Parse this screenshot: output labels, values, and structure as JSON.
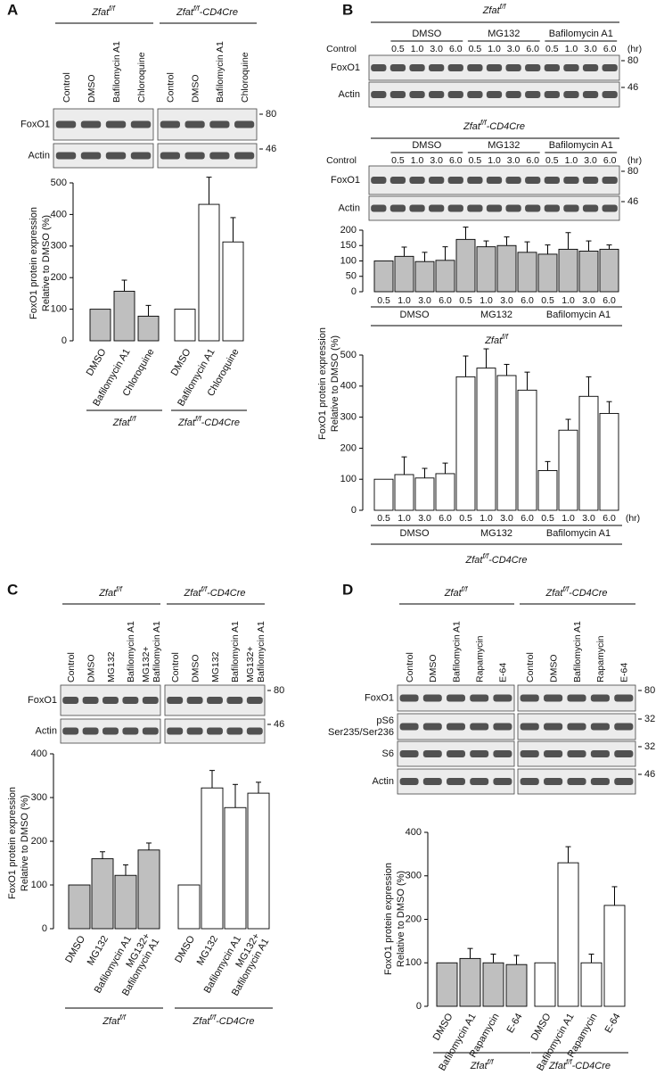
{
  "letters": [
    "A",
    "B",
    "C",
    "D"
  ],
  "blots": [
    {
      "boxes": [
        {
          "header": {
            "base": "Zfat",
            "sup": "f/f"
          },
          "lanes": [
            "Control",
            "DMSO",
            "Bafilomycin A1",
            "Chloroquine"
          ]
        },
        {
          "header": {
            "base": "Zfat",
            "sup": "f/f",
            "suffix": "-CD4Cre"
          },
          "lanes": [
            "Control",
            "DMSO",
            "Bafilomycin A1",
            "Chloroquine"
          ]
        }
      ],
      "rows": [
        {
          "label": "FoxO1",
          "marker": 80
        },
        {
          "label": "Actin",
          "marker": 46
        }
      ]
    },
    {
      "boxes": [
        {
          "header": {
            "base": "Zfat",
            "sup": "f/f"
          },
          "control": "Control",
          "groups": [
            {
              "name": "DMSO",
              "lanes": [
                "0.5",
                "1.0",
                "3.0",
                "6.0"
              ]
            },
            {
              "name": "MG132",
              "lanes": [
                "0.5",
                "1.0",
                "3.0",
                "6.0"
              ]
            },
            {
              "name": "Bafilomycin A1",
              "lanes": [
                "0.5",
                "1.0",
                "3.0",
                "6.0"
              ]
            }
          ],
          "unit": "(hr)"
        }
      ],
      "rows": [
        {
          "label": "FoxO1",
          "marker": 80
        },
        {
          "label": "Actin",
          "marker": 46
        }
      ]
    },
    {
      "boxes": [
        {
          "header": {
            "base": "Zfat",
            "sup": "f/f",
            "suffix": "-CD4Cre"
          },
          "control": "Control",
          "groups": [
            {
              "name": "DMSO",
              "lanes": [
                "0.5",
                "1.0",
                "3.0",
                "6.0"
              ]
            },
            {
              "name": "MG132",
              "lanes": [
                "0.5",
                "1.0",
                "3.0",
                "6.0"
              ]
            },
            {
              "name": "Bafilomycin A1",
              "lanes": [
                "0.5",
                "1.0",
                "3.0",
                "6.0"
              ]
            }
          ],
          "unit": "(hr)"
        }
      ],
      "rows": [
        {
          "label": "FoxO1",
          "marker": 80
        },
        {
          "label": "Actin",
          "marker": 46
        }
      ]
    },
    {
      "boxes": [
        {
          "header": {
            "base": "Zfat",
            "sup": "f/f"
          },
          "lanes": [
            "Control",
            "DMSO",
            "MG132",
            "Bafilomycin A1",
            [
              "MG132+",
              "Bafilomycin A1"
            ]
          ]
        },
        {
          "header": {
            "base": "Zfat",
            "sup": "f/f",
            "suffix": "-CD4Cre"
          },
          "lanes": [
            "Control",
            "DMSO",
            "MG132",
            "Bafilomycin A1",
            [
              "MG132+",
              "Bafilomycin A1"
            ]
          ]
        }
      ],
      "rows": [
        {
          "label": "FoxO1",
          "marker": 80
        },
        {
          "label": "Actin",
          "marker": 46
        }
      ]
    },
    {
      "boxes": [
        {
          "header": {
            "base": "Zfat",
            "sup": "f/f"
          },
          "lanes": [
            "Control",
            "DMSO",
            "Bafilomycin A1",
            "Rapamycin",
            "E-64"
          ]
        },
        {
          "header": {
            "base": "Zfat",
            "sup": "f/f",
            "suffix": "-CD4Cre"
          },
          "lanes": [
            "Control",
            "DMSO",
            "Bafilomycin A1",
            "Rapamycin",
            "E-64"
          ]
        }
      ],
      "rows": [
        {
          "label": "FoxO1",
          "marker": 80
        },
        {
          "label": [
            "pS6",
            "Ser235/Ser236"
          ],
          "marker": 32
        },
        {
          "label": "S6",
          "marker": 32
        },
        {
          "label": "Actin",
          "marker": 46
        }
      ]
    }
  ],
  "chart_data": [
    {
      "type": "bar",
      "ylabel": [
        "FoxO1 protein expression",
        "Relative to DMSO (%)"
      ],
      "ylim": [
        0,
        500
      ],
      "yticks": [
        0,
        100,
        200,
        300,
        400,
        500
      ],
      "groups": [
        {
          "name": {
            "base": "Zfat",
            "sup": "f/f"
          },
          "color": "#bfbfbf",
          "categories": [
            "DMSO",
            "Bafilomycin A1",
            "Chloroquine"
          ],
          "values": [
            100,
            157,
            78
          ],
          "errors": [
            null,
            35,
            34
          ]
        },
        {
          "name": {
            "base": "Zfat",
            "sup": "f/f",
            "suffix": "-CD4Cre"
          },
          "color": "#ffffff",
          "categories": [
            "DMSO",
            "Bafilomycin A1",
            "Chloroquine"
          ],
          "values": [
            100,
            432,
            313
          ],
          "errors": [
            null,
            86,
            77
          ]
        }
      ]
    },
    {
      "type": "bar",
      "ylim": [
        0,
        200
      ],
      "yticks": [
        0,
        50,
        100,
        150,
        200
      ],
      "footer": {
        "base": "Zfat",
        "sup": "f/f"
      },
      "groups": [
        {
          "name": "DMSO",
          "color": "#bfbfbf",
          "categories": [
            "0.5",
            "1.0",
            "3.0",
            "6.0"
          ],
          "values": [
            100,
            115,
            98,
            102
          ],
          "errors": [
            null,
            30,
            30,
            44
          ]
        },
        {
          "name": "MG132",
          "color": "#bfbfbf",
          "categories": [
            "0.5",
            "1.0",
            "3.0",
            "6.0"
          ],
          "values": [
            170,
            146,
            150,
            128
          ],
          "errors": [
            40,
            19,
            28,
            34
          ]
        },
        {
          "name": "Bafilomycin A1",
          "color": "#bfbfbf",
          "categories": [
            "0.5",
            "1.0",
            "3.0",
            "6.0"
          ],
          "values": [
            122,
            138,
            132,
            138
          ],
          "errors": [
            30,
            54,
            33,
            14
          ]
        }
      ]
    },
    {
      "type": "bar",
      "ylabel": [
        "FoxO1 protein expression",
        "Relative to DMSO (%)"
      ],
      "ylim": [
        0,
        500
      ],
      "yticks": [
        0,
        100,
        200,
        300,
        400,
        500
      ],
      "x_unit": "(hr)",
      "footer": {
        "base": "Zfat",
        "sup": "f/f",
        "suffix": "-CD4Cre"
      },
      "groups": [
        {
          "name": "DMSO",
          "color": "#ffffff",
          "categories": [
            "0.5",
            "1.0",
            "3.0",
            "6.0"
          ],
          "values": [
            100,
            115,
            104,
            118
          ],
          "errors": [
            null,
            57,
            31,
            34
          ]
        },
        {
          "name": "MG132",
          "color": "#ffffff",
          "categories": [
            "0.5",
            "1.0",
            "3.0",
            "6.0"
          ],
          "values": [
            430,
            458,
            434,
            387
          ],
          "errors": [
            67,
            62,
            36,
            58
          ]
        },
        {
          "name": "Bafilomycin A1",
          "color": "#ffffff",
          "categories": [
            "0.5",
            "1.0",
            "3.0",
            "6.0"
          ],
          "values": [
            128,
            258,
            367,
            312
          ],
          "errors": [
            29,
            35,
            63,
            38
          ]
        }
      ]
    },
    {
      "type": "bar",
      "ylabel": [
        "FoxO1 protein expression",
        "Relative to DMSO (%)"
      ],
      "ylim": [
        0,
        400
      ],
      "yticks": [
        0,
        100,
        200,
        300,
        400
      ],
      "groups": [
        {
          "name": {
            "base": "Zfat",
            "sup": "f/f"
          },
          "color": "#bfbfbf",
          "categories": [
            "DMSO",
            "MG132",
            "Bafilomycin A1",
            [
              "MG132+",
              "Bafilomycin A1"
            ]
          ],
          "values": [
            100,
            160,
            122,
            180
          ],
          "errors": [
            null,
            16,
            24,
            16
          ]
        },
        {
          "name": {
            "base": "Zfat",
            "sup": "f/f",
            "suffix": "-CD4Cre"
          },
          "color": "#ffffff",
          "categories": [
            "DMSO",
            "MG132",
            "Bafilomycin A1",
            [
              "MG132+",
              "Bafilomycin A1"
            ]
          ],
          "values": [
            100,
            322,
            277,
            310
          ],
          "errors": [
            null,
            40,
            53,
            25
          ]
        }
      ]
    },
    {
      "type": "bar",
      "ylabel": [
        "FoxO1 protein expression",
        "Relative to DMSO (%)"
      ],
      "ylim": [
        0,
        400
      ],
      "yticks": [
        0,
        100,
        200,
        300,
        400
      ],
      "groups": [
        {
          "name": {
            "base": "Zfat",
            "sup": "f/f"
          },
          "color": "#bfbfbf",
          "categories": [
            "DMSO",
            "Bafilomycin A1",
            "Rapamycin",
            "E-64"
          ],
          "values": [
            100,
            110,
            100,
            96
          ],
          "errors": [
            null,
            23,
            20,
            21
          ]
        },
        {
          "name": {
            "base": "Zfat",
            "sup": "f/f",
            "suffix": "-CD4Cre"
          },
          "color": "#ffffff",
          "categories": [
            "DMSO",
            "Bafilomycin A1",
            "Rapamycin",
            "E-64"
          ],
          "values": [
            100,
            330,
            100,
            232
          ],
          "errors": [
            null,
            37,
            20,
            43
          ]
        }
      ]
    }
  ]
}
